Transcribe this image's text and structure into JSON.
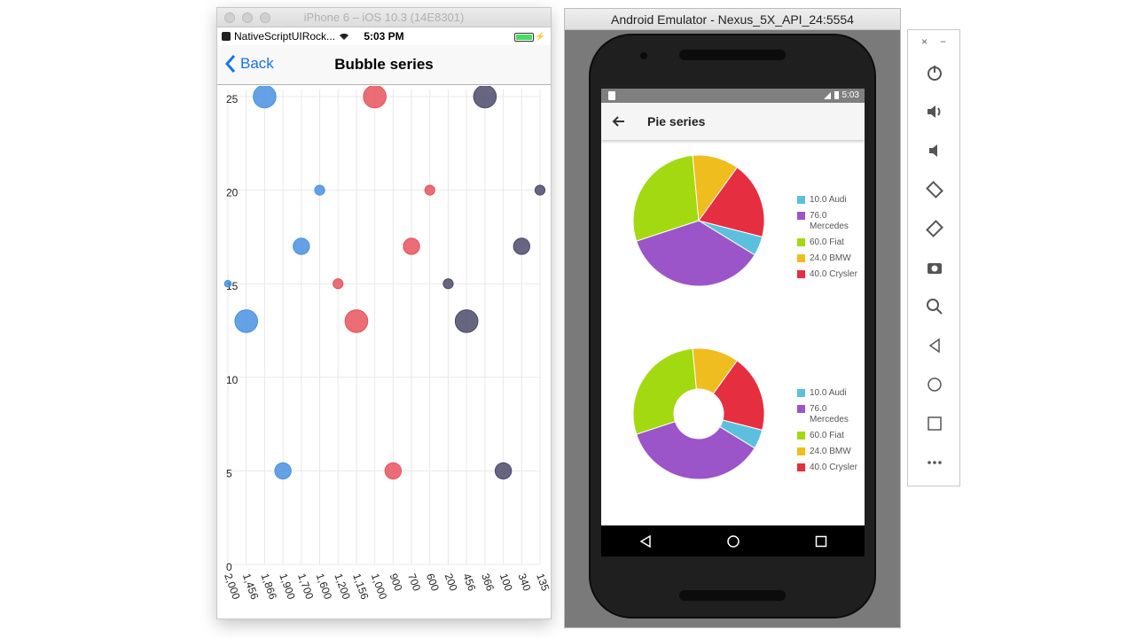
{
  "ios": {
    "window_title": "iPhone 6 – iOS 10.3 (14E8301)",
    "carrier": "NativeScriptUIRock...",
    "time": "5:03 PM",
    "back_label": "Back",
    "page_title": "Bubble series"
  },
  "android": {
    "window_title": "Android Emulator - Nexus_5X_API_24:5554",
    "status_time": "5:03",
    "page_title": "Pie series"
  },
  "toolbar": {
    "close": "×",
    "minimize": "−",
    "buttons": [
      "power-icon",
      "volume-up-icon",
      "volume-down-icon",
      "rotate-left-icon",
      "rotate-right-icon",
      "camera-icon",
      "zoom-icon",
      "back-icon",
      "home-icon",
      "overview-icon",
      "more-icon"
    ]
  },
  "chart_data": [
    {
      "type": "scatter",
      "title": "",
      "x_categories": [
        "2,000",
        "1,456",
        "1,866",
        "1,900",
        "1,700",
        "1,600",
        "1,200",
        "1,156",
        "1,000",
        "900",
        "700",
        "600",
        "200",
        "456",
        "366",
        "100",
        "340",
        "135"
      ],
      "ylim": [
        0,
        25
      ],
      "y_ticks": [
        0,
        5,
        10,
        15,
        20,
        25
      ],
      "series": [
        {
          "color": "#4a90e2",
          "points": [
            {
              "x": "1,866",
              "y": 25,
              "size": 3
            },
            {
              "x": "1,600",
              "y": 20,
              "size": 1
            },
            {
              "x": "1,700",
              "y": 17,
              "size": 2
            },
            {
              "x": "2,000",
              "y": 15,
              "size": 0.5
            },
            {
              "x": "1,456",
              "y": 13,
              "size": 3
            },
            {
              "x": "1,900",
              "y": 5,
              "size": 2
            }
          ]
        },
        {
          "color": "#e8535d",
          "points": [
            {
              "x": "1,000",
              "y": 25,
              "size": 3
            },
            {
              "x": "600",
              "y": 20,
              "size": 1
            },
            {
              "x": "700",
              "y": 17,
              "size": 2
            },
            {
              "x": "1,200",
              "y": 15,
              "size": 1
            },
            {
              "x": "1,156",
              "y": 13,
              "size": 3
            },
            {
              "x": "900",
              "y": 5,
              "size": 2
            }
          ]
        },
        {
          "color": "#4b4b6b",
          "points": [
            {
              "x": "366",
              "y": 25,
              "size": 3
            },
            {
              "x": "135",
              "y": 20,
              "size": 1
            },
            {
              "x": "340",
              "y": 17,
              "size": 2
            },
            {
              "x": "200",
              "y": 15,
              "size": 1
            },
            {
              "x": "456",
              "y": 13,
              "size": 3
            },
            {
              "x": "100",
              "y": 5,
              "size": 2
            }
          ]
        }
      ]
    },
    {
      "type": "pie",
      "donut": false,
      "slices": [
        {
          "label": "10.0 Audi",
          "value": 10,
          "color": "#5bc0de"
        },
        {
          "label": "76.0 Mercedes",
          "value": 76,
          "color": "#9c55c8"
        },
        {
          "label": "60.0 Fiat",
          "value": 60,
          "color": "#a3d911"
        },
        {
          "label": "24.0 BMW",
          "value": 24,
          "color": "#efbd1e"
        },
        {
          "label": "40.0 Crysler",
          "value": 40,
          "color": "#e52e40"
        }
      ]
    },
    {
      "type": "pie",
      "donut": true,
      "slices": [
        {
          "label": "10.0 Audi",
          "value": 10,
          "color": "#5bc0de"
        },
        {
          "label": "76.0 Mercedes",
          "value": 76,
          "color": "#9c55c8"
        },
        {
          "label": "60.0 Fiat",
          "value": 60,
          "color": "#a3d911"
        },
        {
          "label": "24.0 BMW",
          "value": 24,
          "color": "#efbd1e"
        },
        {
          "label": "40.0 Crysler",
          "value": 40,
          "color": "#e52e40"
        }
      ]
    }
  ]
}
